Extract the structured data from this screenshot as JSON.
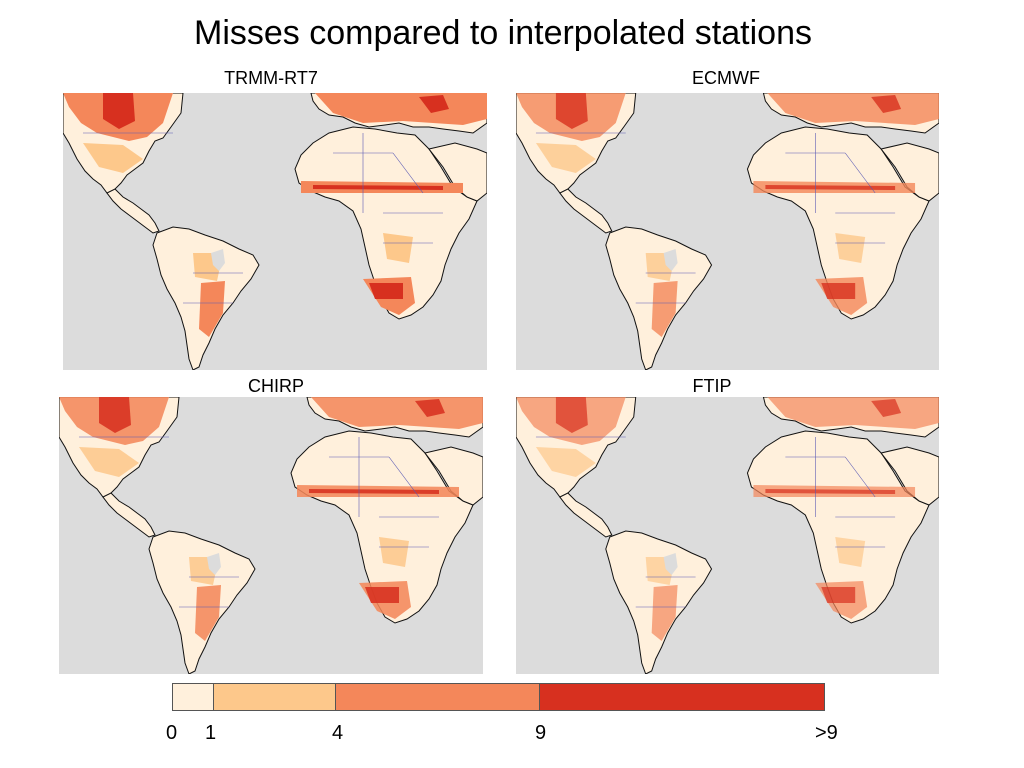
{
  "figure": {
    "title": "Misses compared to interpolated stations"
  },
  "panels": [
    {
      "label": "TRMM-RT7"
    },
    {
      "label": "ECMWF"
    },
    {
      "label": "CHIRP"
    },
    {
      "label": "FTIP"
    }
  ],
  "colorbar": {
    "bins": [
      {
        "from": 0,
        "to": 1,
        "color": "#fff0dc"
      },
      {
        "from": 1,
        "to": 4,
        "color": "#fdc88b"
      },
      {
        "from": 4,
        "to": 9,
        "color": "#f4875a"
      },
      {
        "from": 9,
        "to": ">9",
        "color": "#d7301f"
      }
    ],
    "tick_labels": [
      "0",
      "1",
      "4",
      "9",
      ">9"
    ]
  },
  "colors": {
    "ocean": "#dcdcdc",
    "land_base": "#fff0dc",
    "coast": "#111111",
    "borders": "#5a5ab4"
  }
}
